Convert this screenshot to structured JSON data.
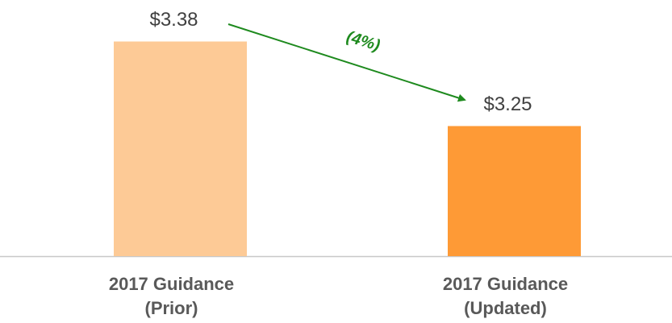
{
  "chart_data": {
    "type": "bar",
    "categories": [
      [
        "2017 Guidance",
        "(Prior)"
      ],
      [
        "2017 Guidance",
        "(Updated)"
      ]
    ],
    "values": [
      3.38,
      3.25
    ],
    "value_labels": [
      "$3.38",
      "$3.25"
    ],
    "colors": [
      "#fdca96",
      "#fe9a36"
    ],
    "ylim": [
      3.05,
      3.45
    ],
    "annotation": "(4%)"
  }
}
